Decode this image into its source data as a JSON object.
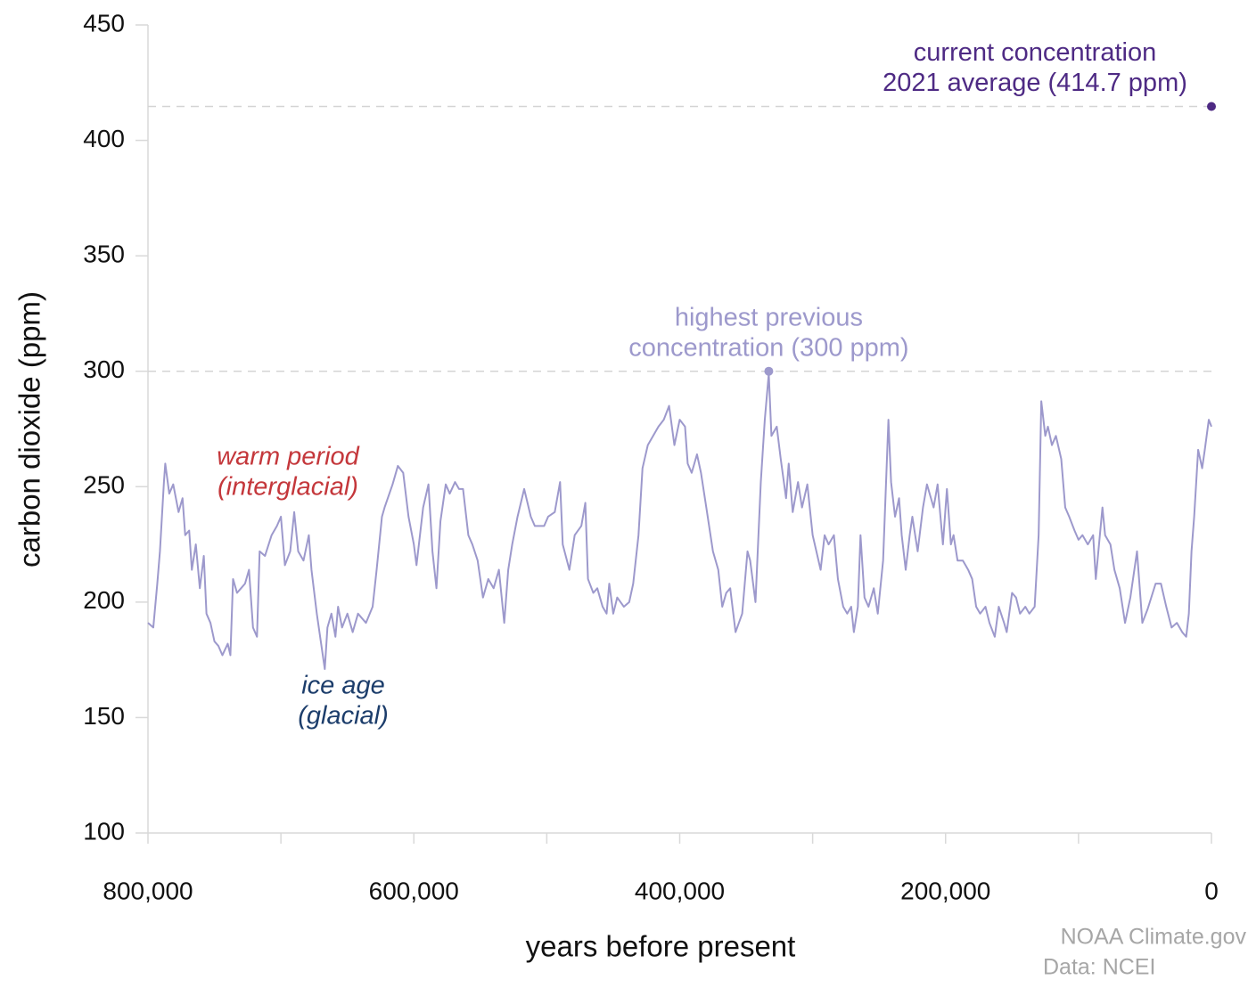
{
  "chart_data": {
    "type": "line",
    "xlabel": "years before present",
    "ylabel": "carbon dioxide (ppm)",
    "xlim": [
      800000,
      0
    ],
    "ylim": [
      100,
      450
    ],
    "yticks": [
      100,
      150,
      200,
      250,
      300,
      350,
      400,
      450
    ],
    "xticks": [
      {
        "value": 800000,
        "label": "800,000"
      },
      {
        "value": 600000,
        "label": "600,000"
      },
      {
        "value": 400000,
        "label": "400,000"
      },
      {
        "value": 200000,
        "label": "200,000"
      },
      0
    ],
    "xminor_ticks": [
      700000,
      500000,
      300000,
      100000
    ],
    "x": [
      800000,
      796000,
      793000,
      791000,
      788000,
      787000,
      784000,
      781000,
      777000,
      774000,
      772000,
      769000,
      767000,
      764000,
      761000,
      758000,
      756000,
      753000,
      750000,
      747000,
      744000,
      740000,
      738000,
      736000,
      733000,
      730000,
      727000,
      724000,
      721000,
      718000,
      716000,
      712000,
      707000,
      703000,
      700000,
      697000,
      693000,
      690000,
      687000,
      683000,
      679000,
      677000,
      673000,
      670000,
      667000,
      665000,
      662000,
      659000,
      657000,
      654000,
      650000,
      646000,
      642000,
      636000,
      631000,
      628000,
      624000,
      622000,
      616000,
      612000,
      608000,
      604000,
      600000,
      598000,
      593000,
      589000,
      586000,
      583000,
      580000,
      576000,
      573000,
      569000,
      566000,
      563000,
      559000,
      556000,
      552000,
      548000,
      544000,
      540000,
      536000,
      532000,
      529000,
      526000,
      522000,
      517000,
      512000,
      509000,
      502000,
      499000,
      494000,
      490000,
      488000,
      483000,
      479000,
      474000,
      471000,
      469000,
      465000,
      462000,
      458000,
      455000,
      453000,
      450000,
      447000,
      442000,
      438000,
      435000,
      431000,
      428000,
      424000,
      420000,
      416000,
      412000,
      408000,
      404000,
      400000,
      396000,
      394000,
      391000,
      387000,
      384000,
      380000,
      375000,
      371000,
      368000,
      365000,
      362000,
      358000,
      353000,
      349000,
      347000,
      343000,
      339000,
      336000,
      333000,
      331000,
      327000,
      324000,
      320000,
      318000,
      315000,
      311000,
      308000,
      304000,
      300000,
      294000,
      291000,
      288000,
      284000,
      281000,
      277000,
      274000,
      271000,
      269000,
      266000,
      264000,
      261000,
      258000,
      254000,
      251000,
      247000,
      243000,
      241000,
      238000,
      235000,
      233000,
      230000,
      227000,
      225000,
      221000,
      217000,
      214000,
      211000,
      209000,
      206000,
      202000,
      199000,
      196000,
      194000,
      191000,
      187000,
      183000,
      180000,
      177000,
      174000,
      170000,
      167000,
      163000,
      160000,
      156000,
      154000,
      150000,
      147000,
      144000,
      140000,
      137000,
      133000,
      130000,
      128000,
      125000,
      123000,
      120000,
      117000,
      113000,
      110000,
      107000,
      103000,
      100000,
      97000,
      93000,
      89000,
      87000,
      82000,
      80000,
      76000,
      73000,
      69000,
      65000,
      61000,
      56000,
      52000,
      48000,
      42000,
      38000,
      34000,
      30000,
      26000,
      22000,
      19000,
      17000,
      15000,
      13000,
      10000,
      7000,
      5000,
      2000,
      0
    ],
    "series": [
      {
        "color": "#9d99cc",
        "values": [
          191,
          189,
          208,
          222,
          252,
          260,
          247,
          251,
          239,
          245,
          229,
          231,
          214,
          225,
          206,
          220,
          195,
          191,
          183,
          181,
          177,
          182,
          177,
          210,
          204,
          206,
          208,
          214,
          189,
          185,
          222,
          220,
          229,
          233,
          237,
          216,
          222,
          239,
          222,
          218,
          229,
          214,
          195,
          183,
          171,
          189,
          195,
          185,
          198,
          189,
          195,
          187,
          195,
          191,
          198,
          214,
          237,
          241,
          251,
          259,
          256,
          237,
          225,
          216,
          241,
          251,
          222,
          206,
          235,
          251,
          247,
          252,
          249,
          249,
          229,
          225,
          218,
          202,
          210,
          206,
          214,
          191,
          214,
          225,
          237,
          249,
          237,
          233,
          233,
          237,
          239,
          252,
          225,
          214,
          229,
          233,
          243,
          210,
          204,
          206,
          198,
          195,
          208,
          195,
          202,
          198,
          200,
          208,
          229,
          258,
          268,
          272,
          276,
          279,
          285,
          268,
          279,
          276,
          260,
          256,
          264,
          256,
          241,
          222,
          214,
          198,
          204,
          206,
          187,
          195,
          222,
          218,
          200,
          252,
          279,
          299,
          272,
          276,
          262,
          245,
          260,
          239,
          252,
          241,
          251,
          229,
          214,
          229,
          225,
          229,
          210,
          198,
          195,
          198,
          187,
          198,
          229,
          202,
          198,
          206,
          195,
          218,
          279,
          252,
          237,
          245,
          229,
          214,
          229,
          237,
          222,
          241,
          251,
          245,
          241,
          251,
          225,
          249,
          225,
          229,
          218,
          218,
          214,
          210,
          198,
          195,
          198,
          191,
          185,
          198,
          191,
          187,
          204,
          202,
          195,
          198,
          195,
          198,
          229,
          287,
          272,
          276,
          268,
          272,
          262,
          241,
          237,
          231,
          227,
          229,
          225,
          229,
          210,
          241,
          229,
          225,
          214,
          206,
          191,
          202,
          222,
          191,
          197,
          208,
          208,
          198,
          189,
          191,
          187,
          185,
          195,
          222,
          237,
          266,
          258,
          266,
          279,
          276
        ]
      }
    ],
    "annotations": [
      {
        "text": [
          "current concentration",
          "2021 average (414.7 ppm)"
        ],
        "x": 0,
        "y": 414.7,
        "color": "#4e2a84",
        "reference_line": true
      },
      {
        "text": [
          "highest previous",
          "concentration (300 ppm)"
        ],
        "x": 333000,
        "y": 300,
        "color": "#9d99cc",
        "reference_line": true
      }
    ],
    "notes": [
      {
        "text": [
          "warm period",
          "(interglacial)"
        ],
        "color": "#c4373b"
      },
      {
        "text": [
          "ice age",
          "(glacial)"
        ],
        "color": "#1c3d6b"
      }
    ],
    "source": [
      "NOAA Climate.gov",
      "Data: NCEI"
    ]
  }
}
